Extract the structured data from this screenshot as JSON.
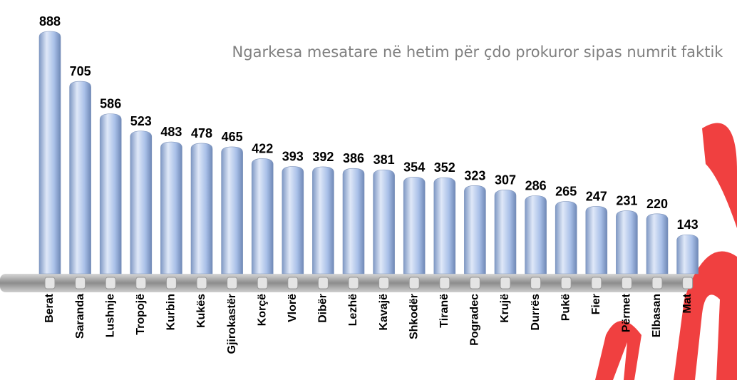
{
  "chart_data": {
    "type": "bar",
    "title": "Ngarkesa mesatare në hetim për çdo prokuror sipas numrit faktik",
    "categories": [
      "Berat",
      "Saranda",
      "Lushnje",
      "Tropojë",
      "Kurbin",
      "Kukës",
      "Gjirokastër",
      "Korçë",
      "Vlorë",
      "Dibër",
      "Lezhë",
      "Kavajë",
      "Shkodër",
      "Tiranë",
      "Pogradec",
      "Krujë",
      "Durrës",
      "Pukë",
      "Fier",
      "Përmet",
      "Elbasan",
      "Mat"
    ],
    "values": [
      888,
      705,
      586,
      523,
      483,
      478,
      465,
      422,
      393,
      392,
      386,
      381,
      354,
      352,
      323,
      307,
      286,
      265,
      247,
      231,
      220,
      143
    ],
    "color": "#a9c0e8"
  }
}
